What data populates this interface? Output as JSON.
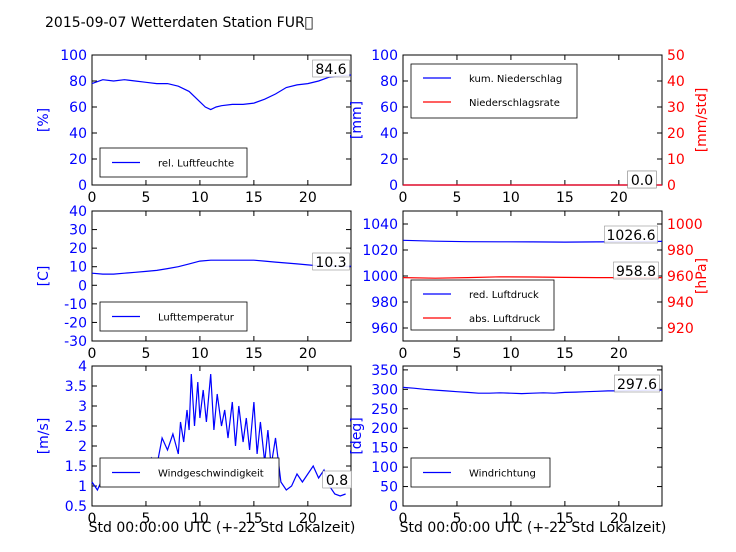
{
  "title": "2015-09-07 Wetterdaten Station FUR\u0000",
  "xlabel": "Std 00:00:00 UTC (+-22 Std Lokalzeit)",
  "colors": {
    "left": "#0000ff",
    "right": "#ff0000",
    "line1": "#0000ff",
    "line2": "#ff0000"
  },
  "chart_data": [
    {
      "id": "humidity",
      "type": "line",
      "xlim": [
        0,
        24
      ],
      "xticks": [
        0,
        5,
        10,
        15,
        20
      ],
      "ylim": [
        0,
        100
      ],
      "yticks": [
        0,
        20,
        40,
        60,
        80,
        100
      ],
      "ylabel": "[%]",
      "series": [
        {
          "name": "rel. Luftfeuchte",
          "axis": "left",
          "x": [
            0,
            1,
            2,
            3,
            4,
            5,
            6,
            7,
            8,
            9,
            10,
            10.5,
            11,
            11.5,
            12,
            13,
            14,
            15,
            16,
            17,
            18,
            19,
            20,
            21,
            22,
            23,
            24
          ],
          "y": [
            78,
            81,
            80,
            81,
            80,
            79,
            78,
            78,
            76,
            72,
            64,
            60,
            58,
            60,
            61,
            62,
            62,
            63,
            66,
            70,
            75,
            77,
            78,
            80,
            83,
            84,
            84.6
          ]
        }
      ],
      "annotations": [
        "84.6"
      ]
    },
    {
      "id": "precip",
      "type": "line",
      "xlim": [
        0,
        24
      ],
      "xticks": [
        0,
        5,
        10,
        15,
        20
      ],
      "ylim": [
        0,
        100
      ],
      "yticks": [
        0,
        20,
        40,
        60,
        80,
        100
      ],
      "ylabel": "[mm]",
      "ylim2": [
        0,
        50
      ],
      "yticks2": [
        0,
        10,
        20,
        30,
        40,
        50
      ],
      "ylabel2": "[mm/std]",
      "series": [
        {
          "name": "kum. Niederschlag",
          "axis": "left",
          "x": [
            0,
            24
          ],
          "y": [
            0,
            0
          ]
        },
        {
          "name": "Niederschlagsrate",
          "axis": "right",
          "x": [
            0,
            24
          ],
          "y": [
            0,
            0
          ]
        }
      ],
      "annotations": [
        "0.0",
        "0.0"
      ]
    },
    {
      "id": "temperature",
      "type": "line",
      "xlim": [
        0,
        24
      ],
      "xticks": [
        0,
        5,
        10,
        15,
        20
      ],
      "ylim": [
        -30,
        40
      ],
      "yticks": [
        -30,
        -20,
        -10,
        0,
        10,
        20,
        30,
        40
      ],
      "ylabel": "[C]",
      "series": [
        {
          "name": "Lufttemperatur",
          "axis": "left",
          "x": [
            0,
            1,
            2,
            3,
            4,
            5,
            6,
            7,
            8,
            9,
            10,
            11,
            12,
            13,
            14,
            15,
            16,
            17,
            18,
            19,
            20,
            21,
            22,
            23,
            24
          ],
          "y": [
            6.5,
            6,
            6,
            6.5,
            7,
            7.5,
            8,
            9,
            10,
            11.5,
            13,
            13.5,
            13.5,
            13.5,
            13.5,
            13.5,
            13,
            12.5,
            12,
            11.5,
            11,
            10.5,
            10.4,
            10.3,
            10.3
          ]
        }
      ],
      "annotations": [
        "10.3"
      ]
    },
    {
      "id": "pressure",
      "type": "line",
      "xlim": [
        0,
        24
      ],
      "xticks": [
        0,
        5,
        10,
        15,
        20
      ],
      "ylim": [
        950,
        1050
      ],
      "yticks": [
        960,
        980,
        1000,
        1020,
        1040
      ],
      "ylim2": [
        910,
        1010
      ],
      "yticks2": [
        920,
        940,
        960,
        980,
        1000
      ],
      "ylabel2": "[hPa]",
      "series": [
        {
          "name": "red. Luftdruck",
          "axis": "left",
          "x": [
            0,
            3,
            6,
            9,
            12,
            15,
            18,
            21,
            24
          ],
          "y": [
            1027.5,
            1026.8,
            1026.4,
            1026.3,
            1026.2,
            1026.1,
            1026.2,
            1026.4,
            1026.6
          ]
        },
        {
          "name": "abs. Luftdruck",
          "axis": "right",
          "x": [
            0,
            3,
            6,
            9,
            12,
            15,
            18,
            21,
            24
          ],
          "y": [
            958.8,
            958.3,
            958.8,
            959.4,
            959.2,
            958.9,
            958.8,
            958.8,
            958.8
          ]
        }
      ],
      "annotations": [
        "1026.6",
        "958.8"
      ]
    },
    {
      "id": "windspeed",
      "type": "line",
      "xlim": [
        0,
        24
      ],
      "xticks": [
        0,
        5,
        10,
        15,
        20
      ],
      "ylim": [
        0.5,
        4.0
      ],
      "yticks": [
        0.5,
        1.0,
        1.5,
        2.0,
        2.5,
        3.0,
        3.5,
        4.0
      ],
      "ylabel": "[m/s]",
      "series": [
        {
          "name": "Windgeschwindigkeit",
          "axis": "left",
          "x": [
            0,
            0.5,
            1,
            1.5,
            2,
            2.5,
            3,
            3.5,
            4,
            4.5,
            5,
            5.5,
            6,
            6.5,
            7,
            7.5,
            8,
            8.2,
            8.5,
            8.8,
            9,
            9.2,
            9.5,
            9.8,
            10,
            10.3,
            10.6,
            11,
            11.3,
            11.6,
            12,
            12.3,
            12.6,
            13,
            13.3,
            13.6,
            14,
            14.3,
            14.6,
            15,
            15.3,
            15.6,
            16,
            16.3,
            16.6,
            17,
            17.5,
            18,
            18.5,
            19,
            19.5,
            20,
            20.5,
            21,
            21.5,
            22,
            22.5,
            23,
            23.5
          ],
          "y": [
            1.1,
            0.9,
            1.2,
            1.0,
            1.3,
            1.1,
            1.4,
            1.2,
            1.3,
            1.5,
            1.4,
            1.7,
            1.5,
            2.2,
            1.9,
            2.3,
            1.8,
            2.6,
            2.1,
            2.9,
            2.4,
            3.8,
            2.5,
            3.6,
            2.7,
            3.4,
            2.6,
            3.8,
            2.4,
            3.3,
            2.5,
            2.9,
            2.2,
            3.1,
            2.0,
            3.0,
            2.1,
            2.7,
            1.9,
            3.1,
            1.8,
            2.6,
            1.6,
            2.4,
            1.5,
            2.2,
            1.1,
            0.9,
            1.0,
            1.3,
            1.1,
            1.3,
            1.5,
            1.2,
            1.4,
            1.0,
            0.8,
            0.75,
            0.8
          ]
        }
      ],
      "annotations": [
        "0.8"
      ]
    },
    {
      "id": "winddir",
      "type": "line",
      "xlim": [
        0,
        24
      ],
      "xticks": [
        0,
        5,
        10,
        15,
        20
      ],
      "ylim": [
        0,
        360
      ],
      "yticks": [
        0,
        50,
        100,
        150,
        200,
        250,
        300,
        350
      ],
      "ylabel": "[deg]",
      "series": [
        {
          "name": "Windrichtung",
          "axis": "left",
          "x": [
            0,
            1,
            2,
            3,
            4,
            5,
            6,
            7,
            8,
            9,
            10,
            11,
            12,
            13,
            14,
            15,
            16,
            17,
            18,
            19,
            20,
            21,
            22,
            23,
            24
          ],
          "y": [
            305,
            303,
            300,
            298,
            296,
            294,
            292,
            290,
            290,
            291,
            290,
            289,
            290,
            291,
            290,
            292,
            293,
            294,
            295,
            296,
            296,
            297,
            297,
            298,
            297.6
          ]
        }
      ],
      "annotations": [
        "297.6"
      ]
    }
  ]
}
